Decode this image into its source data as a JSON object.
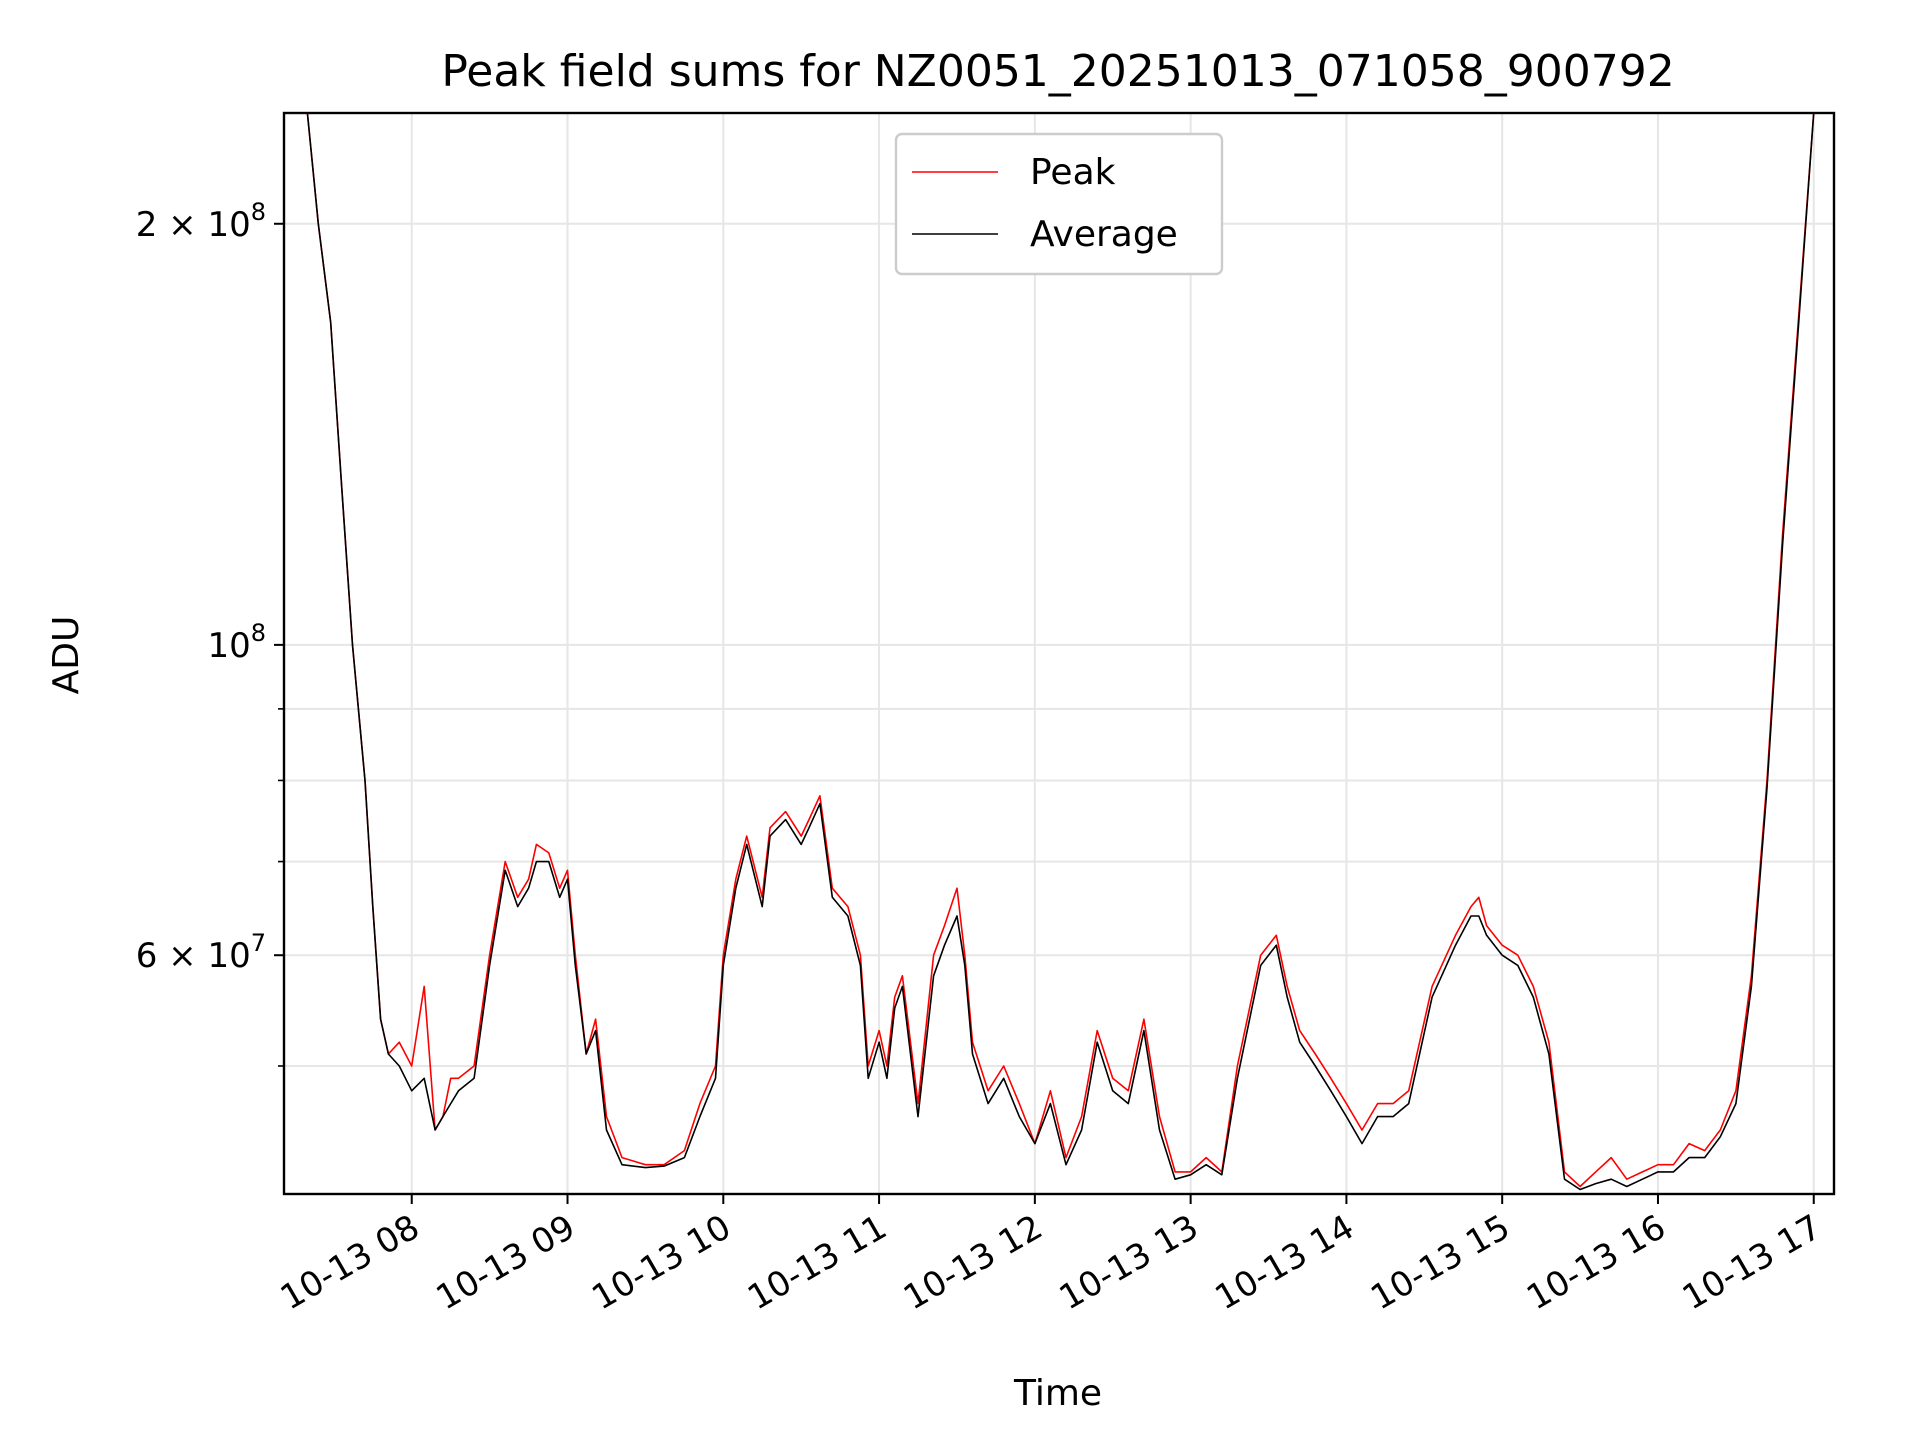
{
  "chart_data": {
    "type": "line",
    "title": "Peak field sums for NZ0051_20251013_071058_900792",
    "xlabel": "Time",
    "ylabel": "ADU",
    "xlim": [
      7.18,
      17.13
    ],
    "ylim": [
      40500000,
      240000000
    ],
    "yscale": "log",
    "grid": true,
    "legend_position": "upper-center",
    "x_ticks": [
      {
        "value": 8,
        "label": "10-13 08"
      },
      {
        "value": 9,
        "label": "10-13 09"
      },
      {
        "value": 10,
        "label": "10-13 10"
      },
      {
        "value": 11,
        "label": "10-13 11"
      },
      {
        "value": 12,
        "label": "10-13 12"
      },
      {
        "value": 13,
        "label": "10-13 13"
      },
      {
        "value": 14,
        "label": "10-13 14"
      },
      {
        "value": 15,
        "label": "10-13 15"
      },
      {
        "value": 16,
        "label": "10-13 16"
      },
      {
        "value": 17,
        "label": "10-13 17"
      }
    ],
    "y_major_ticks": [
      {
        "value": 200000000,
        "label_base": "2 × 10",
        "label_exp": "8"
      },
      {
        "value": 100000000,
        "label_base": "10",
        "label_exp": "8"
      },
      {
        "value": 60000000,
        "label_base": "6 × 10",
        "label_exp": "7"
      }
    ],
    "y_minor_ticks": [
      50000000,
      70000000,
      80000000,
      90000000
    ],
    "series": [
      {
        "name": "Peak",
        "color": "#ff0000",
        "x": [
          7.2,
          7.33,
          7.4,
          7.48,
          7.55,
          7.62,
          7.7,
          7.75,
          7.8,
          7.85,
          7.92,
          8.0,
          8.08,
          8.15,
          8.2,
          8.25,
          8.3,
          8.4,
          8.5,
          8.6,
          8.68,
          8.75,
          8.8,
          8.88,
          8.95,
          9.0,
          9.05,
          9.12,
          9.18,
          9.25,
          9.35,
          9.5,
          9.62,
          9.75,
          9.85,
          9.95,
          10.0,
          10.08,
          10.15,
          10.25,
          10.3,
          10.4,
          10.5,
          10.55,
          10.62,
          10.7,
          10.8,
          10.88,
          10.93,
          11.0,
          11.05,
          11.1,
          11.15,
          11.25,
          11.35,
          11.42,
          11.5,
          11.55,
          11.6,
          11.7,
          11.8,
          11.9,
          12.0,
          12.1,
          12.2,
          12.3,
          12.4,
          12.5,
          12.6,
          12.7,
          12.8,
          12.9,
          13.0,
          13.1,
          13.2,
          13.3,
          13.45,
          13.55,
          13.62,
          13.7,
          13.8,
          13.9,
          14.0,
          14.1,
          14.2,
          14.3,
          14.4,
          14.55,
          14.7,
          14.8,
          14.85,
          14.9,
          15.0,
          15.1,
          15.2,
          15.3,
          15.4,
          15.5,
          15.6,
          15.7,
          15.8,
          15.9,
          16.0,
          16.1,
          16.2,
          16.3,
          16.4,
          16.5,
          16.6,
          16.7,
          16.8,
          16.9,
          17.0
        ],
        "values": [
          240000000,
          240000000,
          200000000,
          170000000,
          130000000,
          100000000,
          80000000,
          65000000,
          54000000,
          51000000,
          52000000,
          50000000,
          57000000,
          45000000,
          46000000,
          49000000,
          49000000,
          50000000,
          60000000,
          70000000,
          66000000,
          68000000,
          72000000,
          71000000,
          67000000,
          69000000,
          60000000,
          51000000,
          54000000,
          46000000,
          43000000,
          42500000,
          42500000,
          43500000,
          47000000,
          50000000,
          60000000,
          68000000,
          73000000,
          66000000,
          74000000,
          76000000,
          73000000,
          75000000,
          78000000,
          67000000,
          65000000,
          60000000,
          50000000,
          53000000,
          50000000,
          56000000,
          58000000,
          47000000,
          60000000,
          63000000,
          67000000,
          60000000,
          52000000,
          48000000,
          50000000,
          47000000,
          44000000,
          48000000,
          43000000,
          46000000,
          53000000,
          49000000,
          48000000,
          54000000,
          46000000,
          42000000,
          42000000,
          43000000,
          42000000,
          50000000,
          60000000,
          62000000,
          57000000,
          53000000,
          51000000,
          49000000,
          47000000,
          45000000,
          47000000,
          47000000,
          48000000,
          57000000,
          62000000,
          65000000,
          66000000,
          63000000,
          61000000,
          60000000,
          57000000,
          52000000,
          42000000,
          41000000,
          42000000,
          43000000,
          41500000,
          42000000,
          42500000,
          42500000,
          44000000,
          43500000,
          45000000,
          48000000,
          58000000,
          80000000,
          120000000,
          170000000,
          240000000
        ]
      },
      {
        "name": "Average",
        "color": "#000000",
        "x": [
          7.2,
          7.33,
          7.4,
          7.48,
          7.55,
          7.62,
          7.7,
          7.75,
          7.8,
          7.85,
          7.92,
          8.0,
          8.08,
          8.15,
          8.2,
          8.25,
          8.3,
          8.4,
          8.5,
          8.6,
          8.68,
          8.75,
          8.8,
          8.88,
          8.95,
          9.0,
          9.05,
          9.12,
          9.18,
          9.25,
          9.35,
          9.5,
          9.62,
          9.75,
          9.85,
          9.95,
          10.0,
          10.08,
          10.15,
          10.25,
          10.3,
          10.4,
          10.5,
          10.55,
          10.62,
          10.7,
          10.8,
          10.88,
          10.93,
          11.0,
          11.05,
          11.1,
          11.15,
          11.25,
          11.35,
          11.42,
          11.5,
          11.55,
          11.6,
          11.7,
          11.8,
          11.9,
          12.0,
          12.1,
          12.2,
          12.3,
          12.4,
          12.5,
          12.6,
          12.7,
          12.8,
          12.9,
          13.0,
          13.1,
          13.2,
          13.3,
          13.45,
          13.55,
          13.62,
          13.7,
          13.8,
          13.9,
          14.0,
          14.1,
          14.2,
          14.3,
          14.4,
          14.55,
          14.7,
          14.8,
          14.85,
          14.9,
          15.0,
          15.1,
          15.2,
          15.3,
          15.4,
          15.5,
          15.6,
          15.7,
          15.8,
          15.9,
          16.0,
          16.1,
          16.2,
          16.3,
          16.4,
          16.5,
          16.6,
          16.7,
          16.8,
          16.9,
          17.0
        ],
        "values": [
          240000000,
          240000000,
          200000000,
          170000000,
          130000000,
          100000000,
          80000000,
          65000000,
          54000000,
          51000000,
          50000000,
          48000000,
          49000000,
          45000000,
          46000000,
          47000000,
          48000000,
          49000000,
          59000000,
          69000000,
          65000000,
          67000000,
          70000000,
          70000000,
          66000000,
          68000000,
          59000000,
          51000000,
          53000000,
          45000000,
          42500000,
          42300000,
          42400000,
          43000000,
          46000000,
          49000000,
          59000000,
          67000000,
          72000000,
          65000000,
          73000000,
          75000000,
          72000000,
          74000000,
          77000000,
          66000000,
          64000000,
          59000000,
          49000000,
          52000000,
          49000000,
          55000000,
          57000000,
          46000000,
          58000000,
          61000000,
          64000000,
          59000000,
          51000000,
          47000000,
          49000000,
          46000000,
          44000000,
          47000000,
          42500000,
          45000000,
          52000000,
          48000000,
          47000000,
          53000000,
          45000000,
          41500000,
          41800000,
          42500000,
          41800000,
          49000000,
          59000000,
          61000000,
          56000000,
          52000000,
          50000000,
          48000000,
          46000000,
          44000000,
          46000000,
          46000000,
          47000000,
          56000000,
          61000000,
          64000000,
          64000000,
          62000000,
          60000000,
          59000000,
          56000000,
          51000000,
          41500000,
          40800000,
          41200000,
          41500000,
          41000000,
          41500000,
          42000000,
          42000000,
          43000000,
          43000000,
          44500000,
          47000000,
          57000000,
          79000000,
          118000000,
          168000000,
          240000000
        ]
      }
    ]
  }
}
